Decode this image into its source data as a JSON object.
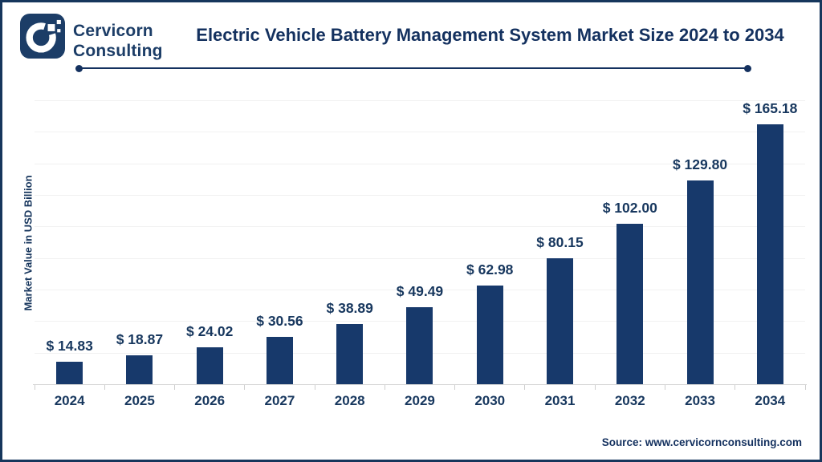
{
  "brand": {
    "line1": "Cervicorn",
    "line2": "Consulting",
    "logo": "cervicorn-c-mark"
  },
  "header": {
    "title": "Electric Vehicle Battery Management System Market Size 2024 to 2034"
  },
  "chart_data": {
    "type": "bar",
    "title": "Electric Vehicle Battery Management System Market Size 2024 to 2034",
    "categories": [
      "2024",
      "2025",
      "2026",
      "2027",
      "2028",
      "2029",
      "2030",
      "2031",
      "2032",
      "2033",
      "2034"
    ],
    "values": [
      14.83,
      18.87,
      24.02,
      30.56,
      38.89,
      49.49,
      62.98,
      80.15,
      102.0,
      129.8,
      165.18
    ],
    "labels": [
      "$ 14.83",
      "$ 18.87",
      "$ 24.02",
      "$ 30.56",
      "$ 38.89",
      "$ 49.49",
      "$ 62.98",
      "$ 80.15",
      "$ 102.00",
      "$ 129.80",
      "$ 165.18"
    ],
    "xlabel": "",
    "ylabel": "Market Value in USD Billion",
    "ylim": [
      0,
      180
    ],
    "grid_step": 20,
    "grid": true,
    "legend": "none",
    "bar_color": "#17396B"
  },
  "footer": {
    "source": "Source: www.cervicornconsulting.com"
  },
  "colors": {
    "bar": "#17396B",
    "text_navy": "#17375E",
    "title_navy": "#14315F",
    "border": "#16365C",
    "gridline": "#F1F1F1",
    "axis_line": "#D6D6D6"
  }
}
